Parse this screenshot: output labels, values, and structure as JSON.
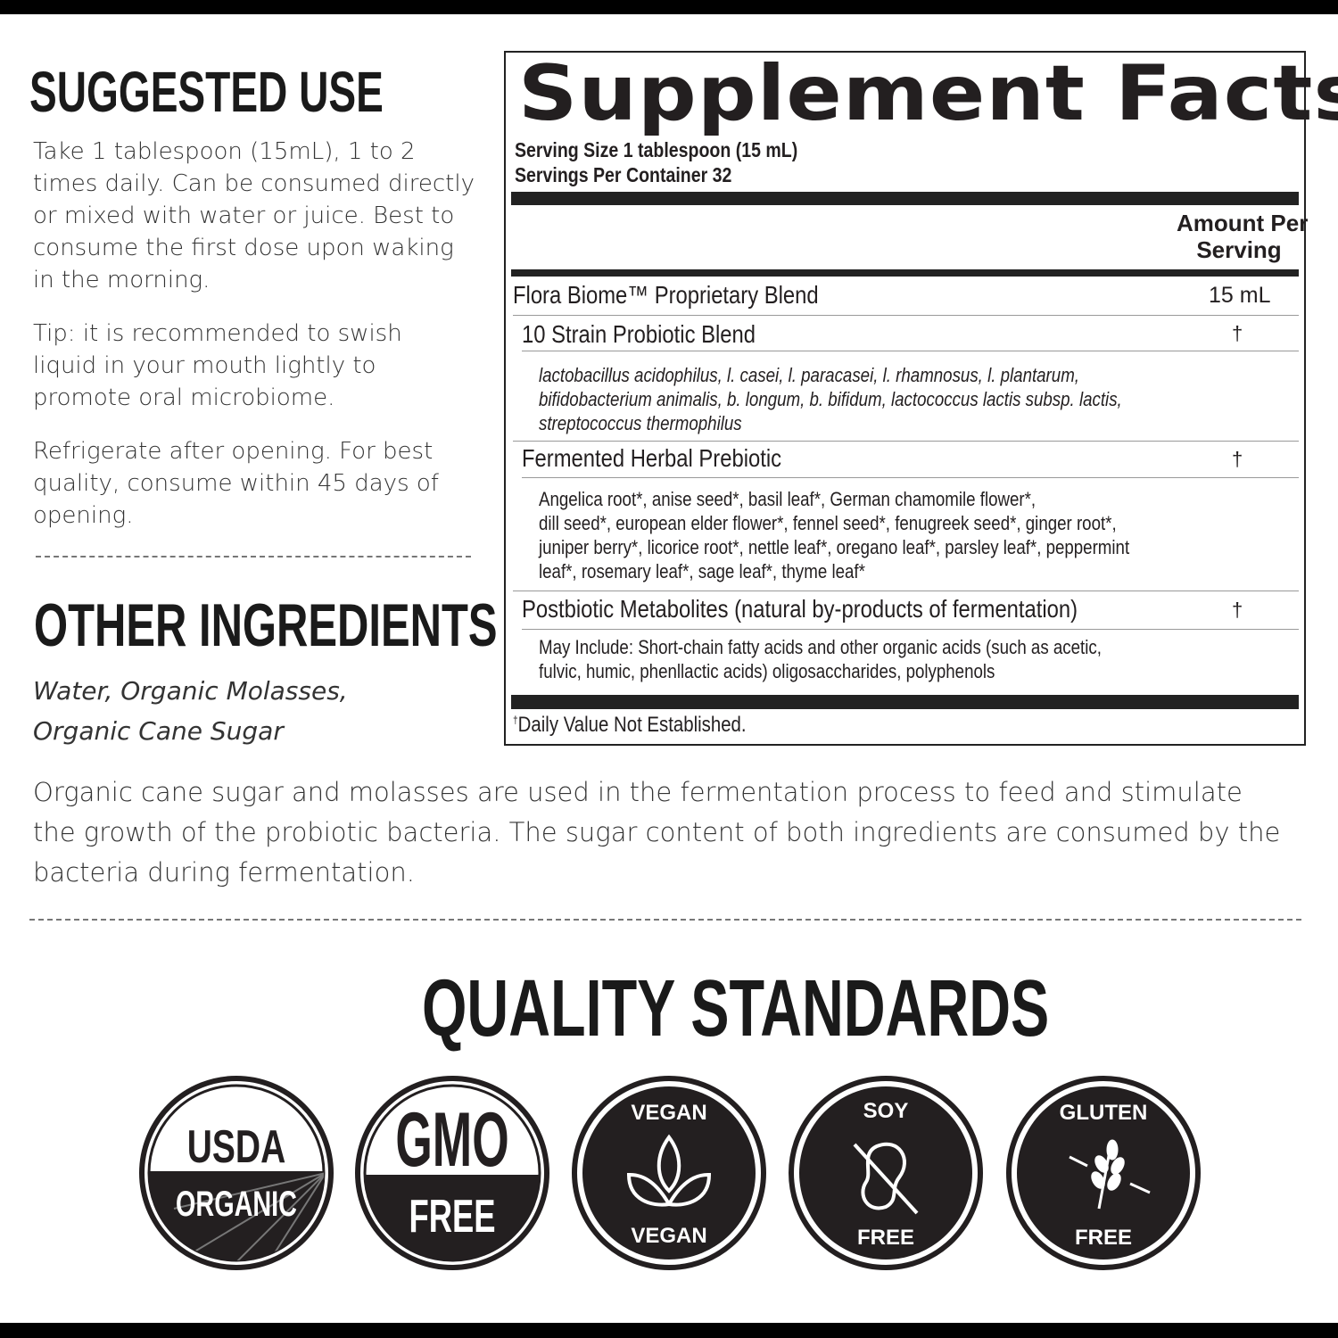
{
  "suggested_use": {
    "heading": "SUGGESTED USE",
    "paragraphs": [
      "Take 1 tablespoon (15mL), 1 to 2 times daily. Can be consumed directly or mixed with water or juice. Best to consume the first dose upon waking in the morning.",
      "Tip: it is recommended to swish liquid in your mouth lightly to promote oral microbiome.",
      "Refrigerate after opening. For best quality, consume within 45 days of opening."
    ]
  },
  "other_ingredients": {
    "heading": "OTHER INGREDIENTS",
    "text": "Water, Organic Molasses, Organic Cane Sugar"
  },
  "note": "Organic cane sugar and molasses are used in the fermentation process to feed and stimulate the growth of the probiotic bacteria. The sugar content of both ingredients are consumed by the bacteria during fermentation.",
  "facts": {
    "title": "Supplement Facts",
    "serving_size": "Serving Size 1 tablespoon (15 mL)",
    "servings_per_container": "Servings Per Container 32",
    "amount_header_1": "Amount Per",
    "amount_header_2": "Serving",
    "blend": {
      "name": "Flora Biome™ Proprietary Blend",
      "amount": "15 mL"
    },
    "rows": [
      {
        "name": "10 Strain Probiotic Blend",
        "amount": "†",
        "detail": [
          "lactobacillus acidophilus, l. casei, l. paracasei, l. rhamnosus, l. plantarum,",
          "bifidobacterium animalis, b. longum, b. bifidum, lactococcus lactis subsp. lactis,",
          "streptococcus thermophilus"
        ]
      },
      {
        "name": "Fermented Herbal Prebiotic",
        "amount": "†",
        "detail": [
          "Angelica root*, anise seed*, basil leaf*, German chamomile flower*,",
          "dill seed*, european elder flower*, fennel seed*, fenugreek seed*, ginger root*,",
          "juniper berry*, licorice root*, nettle leaf*, oregano leaf*, parsley leaf*, peppermint",
          "leaf*, rosemary leaf*, sage leaf*, thyme leaf*"
        ]
      },
      {
        "name": "Postbiotic Metabolites (natural by-products of fermentation)",
        "amount": "†",
        "detail": [
          "May Include: Short-chain fatty acids and other organic acids (such as acetic,",
          "fulvic, humic, phenllactic acids) oligosaccharides, polyphenols"
        ]
      }
    ],
    "footnote_mark": "†",
    "footnote": "Daily Value Not Established."
  },
  "quality": {
    "heading": "QUALITY STANDARDS",
    "badges": [
      {
        "top": "USDA",
        "bottom": "ORGANIC",
        "icon": "usda-organic-icon"
      },
      {
        "top": "GMO",
        "bottom": "FREE",
        "icon": "gmo-free-icon"
      },
      {
        "top": "VEGAN",
        "bottom": "VEGAN",
        "icon": "leaf-icon"
      },
      {
        "top": "SOY",
        "bottom": "FREE",
        "icon": "soybean-crossed-icon"
      },
      {
        "top": "GLUTEN",
        "bottom": "FREE",
        "icon": "wheat-crossed-icon"
      }
    ]
  },
  "colors": {
    "ink": "#231f20",
    "badge_fill": "#231f20"
  }
}
